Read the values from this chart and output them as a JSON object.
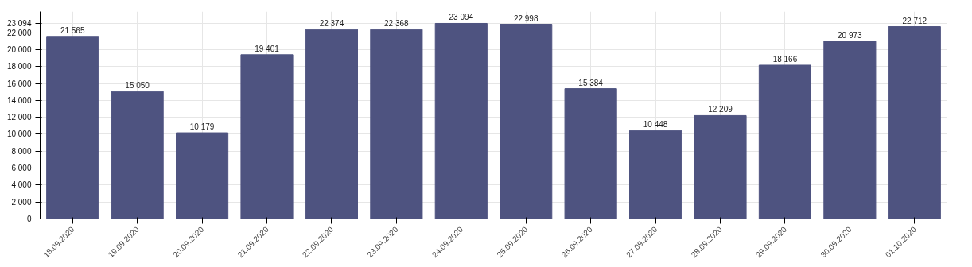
{
  "chart_data": {
    "type": "bar",
    "categories": [
      "18.09.2020",
      "19.09.2020",
      "20.09.2020",
      "21.09.2020",
      "22.09.2020",
      "23.09.2020",
      "24.09.2020",
      "25.09.2020",
      "26.09.2020",
      "27.09.2020",
      "28.09.2020",
      "29.09.2020",
      "30.09.2020",
      "01.10.2020"
    ],
    "values": [
      21565,
      15050,
      10179,
      19401,
      22374,
      22368,
      23094,
      22998,
      15384,
      10448,
      12209,
      18166,
      20973,
      22712
    ],
    "value_labels": [
      "21 565",
      "15 050",
      "10 179",
      "19 401",
      "22 374",
      "22 368",
      "23 094",
      "22 998",
      "15 384",
      "10 448",
      "12 209",
      "18 166",
      "20 973",
      "22 712"
    ],
    "color": "#4e5380",
    "ylim": [
      0,
      24500
    ],
    "yticks": [
      0,
      {
        "value": 2000,
        "label": "2 000"
      },
      {
        "value": 4000,
        "label": "4 000"
      },
      {
        "value": 6000,
        "label": "6 000"
      },
      {
        "value": 8000,
        "label": "8 000"
      },
      {
        "value": 10000,
        "label": "10 000"
      },
      {
        "value": 12000,
        "label": "12 000"
      },
      {
        "value": 14000,
        "label": "14 000"
      },
      {
        "value": 16000,
        "label": "16 000"
      },
      {
        "value": 18000,
        "label": "18 000"
      },
      {
        "value": 20000,
        "label": "20 000"
      },
      {
        "value": 22000,
        "label": "22 000"
      },
      {
        "value": 23094,
        "label": "23 094"
      }
    ],
    "grid": true
  }
}
